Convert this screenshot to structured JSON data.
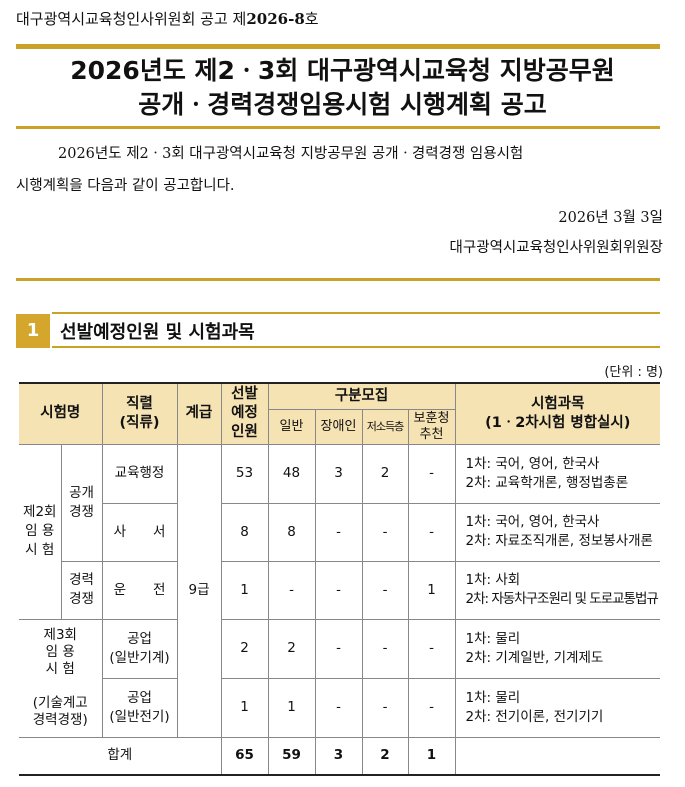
{
  "notice_no": {
    "prefix": "대구광역시교육청인사위원회 공고 제",
    "number": "2026-8",
    "suffix": "호"
  },
  "title": [
    "2026년도 제2ㆍ3회 대구광역시교육청 지방공무원",
    "공개ㆍ경력경쟁임용시험 시행계획 공고"
  ],
  "intro": [
    "2026년도 제2ㆍ3회 대구광역시교육청 지방공무원 공개ㆍ경력경쟁 임용시험",
    "시행계획을 다음과 같이 공고합니다."
  ],
  "date": "2026년  3월  3일",
  "issuer": "대구광역시교육청인사위원회위원장",
  "section": {
    "number": "1",
    "title": "선발예정인원 및 시험과목"
  },
  "unit": "(단위 : 명)",
  "table": {
    "headers": {
      "exam": "시험명",
      "series": "직렬\n(직류)",
      "grade": "계급",
      "planned": "선발\n예정\n인원",
      "category": "구분모집",
      "general": "일반",
      "disabled": "장애인",
      "lowincome": "저소득층",
      "veteran": "보훈청\n추천",
      "subjects": "시험과목\n(1ㆍ2차시험  병합실시)"
    },
    "exam2": "제2회\n임 용\n시 험",
    "open": "공개\n경쟁",
    "career": "경력\n경쟁",
    "exam3": "제3회\n임 용\n시 험\n\n(기술계고\n경력경쟁)",
    "grade": "9급",
    "rows": [
      {
        "series": "교육행정",
        "planned": "53",
        "general": "48",
        "disabled": "3",
        "lowincome": "2",
        "veteran": "-",
        "s1": "1차: 국어, 영어, 한국사",
        "s2": "2차: 교육학개론, 행정법총론"
      },
      {
        "series": "사　　서",
        "planned": "8",
        "general": "8",
        "disabled": "-",
        "lowincome": "-",
        "veteran": "-",
        "s1": "1차: 국어, 영어, 한국사",
        "s2": "2차: 자료조직개론, 정보봉사개론"
      },
      {
        "series": "운　　전",
        "planned": "1",
        "general": "-",
        "disabled": "-",
        "lowincome": "-",
        "veteran": "1",
        "s1": "1차: 사회",
        "s2": "2차: 자동차구조원리 및 도로교통법규"
      },
      {
        "series": "공업\n(일반기계)",
        "planned": "2",
        "general": "2",
        "disabled": "-",
        "lowincome": "-",
        "veteran": "-",
        "s1": "1차: 물리",
        "s2": "2차: 기계일반, 기계제도"
      },
      {
        "series": "공업\n(일반전기)",
        "planned": "1",
        "general": "1",
        "disabled": "-",
        "lowincome": "-",
        "veteran": "-",
        "s1": "1차: 물리",
        "s2": "2차: 전기이론, 전기기기"
      }
    ],
    "total": {
      "label": "합계",
      "planned": "65",
      "general": "59",
      "disabled": "3",
      "lowincome": "2",
      "veteran": "1"
    }
  },
  "accent_color": "#c9a227",
  "header_bg": "#f6e3b4"
}
